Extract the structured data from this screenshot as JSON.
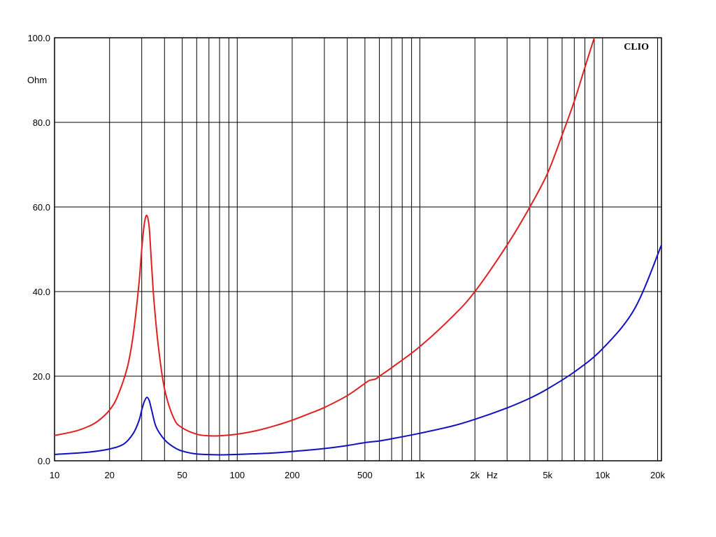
{
  "chart_data": {
    "type": "line",
    "brand": "CLIO",
    "ylabel": "Ohm",
    "xlabel": "Hz",
    "x_scale": "log",
    "xlim": [
      10,
      21000
    ],
    "ylim": [
      0,
      100
    ],
    "y_ticks": [
      "0.0",
      "20.0",
      "40.0",
      "60.0",
      "80.0",
      "100.0"
    ],
    "x_ticks": [
      {
        "value": 10,
        "label": "10"
      },
      {
        "value": 20,
        "label": "20"
      },
      {
        "value": 50,
        "label": "50"
      },
      {
        "value": 100,
        "label": "100"
      },
      {
        "value": 200,
        "label": "200"
      },
      {
        "value": 500,
        "label": "500"
      },
      {
        "value": 1000,
        "label": "1k"
      },
      {
        "value": 2000,
        "label": "2k"
      },
      {
        "value": 5000,
        "label": "5k"
      },
      {
        "value": 10000,
        "label": "10k"
      },
      {
        "value": 20000,
        "label": "20k"
      }
    ],
    "grid": true,
    "series": [
      {
        "color": "#e02020",
        "points": [
          [
            10,
            6.0
          ],
          [
            13,
            7.0
          ],
          [
            16,
            8.5
          ],
          [
            18,
            10.0
          ],
          [
            20,
            12.0
          ],
          [
            22,
            15.0
          ],
          [
            25,
            22.0
          ],
          [
            27,
            30.0
          ],
          [
            29,
            42.0
          ],
          [
            30,
            50.0
          ],
          [
            31,
            56.0
          ],
          [
            32,
            58.0
          ],
          [
            33,
            55.0
          ],
          [
            34,
            46.0
          ],
          [
            35,
            38.0
          ],
          [
            37,
            27.0
          ],
          [
            40,
            17.0
          ],
          [
            45,
            10.0
          ],
          [
            50,
            7.8
          ],
          [
            60,
            6.3
          ],
          [
            70,
            5.9
          ],
          [
            80,
            5.9
          ],
          [
            100,
            6.3
          ],
          [
            130,
            7.2
          ],
          [
            170,
            8.6
          ],
          [
            200,
            9.6
          ],
          [
            250,
            11.2
          ],
          [
            300,
            12.6
          ],
          [
            400,
            15.4
          ],
          [
            500,
            18.3
          ],
          [
            530,
            19.0
          ],
          [
            570,
            19.3
          ],
          [
            600,
            20.0
          ],
          [
            700,
            22.0
          ],
          [
            1000,
            27.0
          ],
          [
            1500,
            34.0
          ],
          [
            2000,
            40.0
          ],
          [
            3000,
            51.0
          ],
          [
            4000,
            60.0
          ],
          [
            5000,
            68.0
          ],
          [
            6000,
            77.0
          ],
          [
            7000,
            85.0
          ],
          [
            8000,
            93.0
          ],
          [
            9000,
            100.0
          ]
        ]
      },
      {
        "color": "#1010c0",
        "points": [
          [
            10,
            1.5
          ],
          [
            15,
            2.0
          ],
          [
            20,
            2.8
          ],
          [
            24,
            4.0
          ],
          [
            27,
            6.5
          ],
          [
            29,
            9.5
          ],
          [
            30,
            12.0
          ],
          [
            31,
            14.0
          ],
          [
            32,
            15.0
          ],
          [
            33,
            14.2
          ],
          [
            34,
            12.0
          ],
          [
            36,
            8.0
          ],
          [
            40,
            5.0
          ],
          [
            45,
            3.2
          ],
          [
            50,
            2.3
          ],
          [
            60,
            1.6
          ],
          [
            80,
            1.4
          ],
          [
            100,
            1.5
          ],
          [
            150,
            1.8
          ],
          [
            200,
            2.2
          ],
          [
            300,
            2.9
          ],
          [
            400,
            3.6
          ],
          [
            500,
            4.3
          ],
          [
            600,
            4.7
          ],
          [
            700,
            5.2
          ],
          [
            1000,
            6.5
          ],
          [
            1500,
            8.2
          ],
          [
            2000,
            9.8
          ],
          [
            3000,
            12.5
          ],
          [
            4000,
            14.8
          ],
          [
            5000,
            17.0
          ],
          [
            7000,
            21.0
          ],
          [
            10000,
            26.5
          ],
          [
            15000,
            36.0
          ],
          [
            21000,
            51.0
          ]
        ]
      }
    ]
  }
}
